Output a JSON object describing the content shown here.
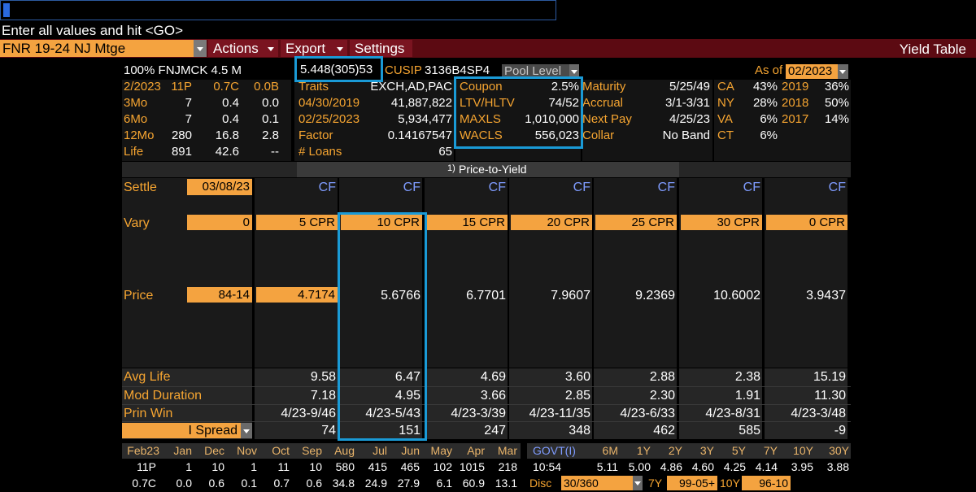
{
  "command_line": {
    "prompt": "Enter all values and hit <GO>"
  },
  "toolbar": {
    "security": "FNR 19-24 NJ Mtge",
    "menus": [
      "Actions",
      "Export",
      "Settings"
    ],
    "title": "Yield Table"
  },
  "header": {
    "description": "100% FNJMCK 4.5 M",
    "quote": "5.448(305)53",
    "cusip_label": "CUSIP",
    "cusip": "3136B4SP4",
    "pool_level": "Pool Level",
    "as_of_label": "As of",
    "as_of": "02/2023"
  },
  "prepay_stats": {
    "rows": [
      [
        "2/2023",
        "11P",
        "0.7C",
        "0.0B"
      ],
      [
        "3Mo",
        "7",
        "0.4",
        "0.0"
      ],
      [
        "6Mo",
        "7",
        "0.4",
        "0.1"
      ],
      [
        "12Mo",
        "280",
        "16.8",
        "2.8"
      ],
      [
        "Life",
        "891",
        "42.6",
        "--"
      ]
    ]
  },
  "pool_info": {
    "rows": [
      [
        "Traits",
        "EXCH,AD,PAC"
      ],
      [
        "04/30/2019",
        "41,887,822"
      ],
      [
        "02/25/2023",
        "5,934,477"
      ],
      [
        "Factor",
        "0.14167547"
      ],
      [
        "# Loans",
        "65"
      ]
    ]
  },
  "loan_info": {
    "rows": [
      [
        "Coupon",
        "2.5%"
      ],
      [
        "LTV/HLTV",
        "74/52"
      ],
      [
        "MAXLS",
        "1,010,000"
      ],
      [
        "WACLS",
        "556,023"
      ]
    ]
  },
  "dates_info": {
    "rows": [
      [
        "Maturity",
        "5/25/49"
      ],
      [
        "Accrual",
        "3/1-3/31"
      ],
      [
        "Next Pay",
        "4/25/23"
      ],
      [
        "Collar",
        "No Band"
      ]
    ]
  },
  "geo": {
    "rows": [
      [
        "CA",
        "43%"
      ],
      [
        "NY",
        "28%"
      ],
      [
        "VA",
        "6%"
      ],
      [
        "CT",
        "6%"
      ]
    ]
  },
  "vintage": {
    "rows": [
      [
        "2019",
        "36%"
      ],
      [
        "2018",
        "50%"
      ],
      [
        "2017",
        "14%"
      ]
    ]
  },
  "section_tab": {
    "number": "1)",
    "title": "Price-to-Yield"
  },
  "yield_table": {
    "settle_label": "Settle",
    "settle": "03/08/23",
    "cf": [
      "CF",
      "CF",
      "CF",
      "CF",
      "CF",
      "CF",
      "CF"
    ],
    "vary_label": "Vary",
    "vary": [
      "0",
      "5 CPR",
      "10 CPR",
      "15 CPR",
      "20 CPR",
      "25 CPR",
      "30 CPR",
      "0 CPR"
    ],
    "price_label": "Price",
    "price": [
      "84-14",
      "4.7174",
      "5.6766",
      "6.7701",
      "7.9607",
      "9.2369",
      "10.6002",
      "3.9437"
    ],
    "rows": [
      {
        "label": "Avg Life",
        "values": [
          "9.58",
          "6.47",
          "4.69",
          "3.60",
          "2.88",
          "2.38",
          "15.19"
        ]
      },
      {
        "label": "Mod Duration",
        "values": [
          "7.18",
          "4.95",
          "3.66",
          "2.85",
          "2.30",
          "1.91",
          "11.30"
        ]
      },
      {
        "label": "Prin Win",
        "values": [
          "4/23-9/46",
          "4/23-5/43",
          "4/23-3/39",
          "4/23-11/35",
          "4/23-6/33",
          "4/23-8/31",
          "4/23-3/48"
        ]
      }
    ],
    "spread_label": "I Spread",
    "spread": [
      "74",
      "151",
      "247",
      "348",
      "462",
      "585",
      "-9"
    ]
  },
  "history": {
    "months": [
      "Feb23",
      "Jan",
      "Dec",
      "Nov",
      "Oct",
      "Sep",
      "Aug",
      "Jul",
      "Jun",
      "May",
      "Apr",
      "Mar"
    ],
    "rows": [
      [
        "11P",
        "1",
        "10",
        "1",
        "11",
        "10",
        "580",
        "415",
        "465",
        "102",
        "1015",
        "218"
      ],
      [
        "0.7C",
        "0.0",
        "0.6",
        "0.1",
        "0.7",
        "0.6",
        "34.8",
        "24.9",
        "27.9",
        "6.1",
        "60.9",
        "13.1"
      ]
    ]
  },
  "govt": {
    "label": "GOVT(I)",
    "tenors": [
      "6M",
      "1Y",
      "2Y",
      "3Y",
      "5Y",
      "7Y",
      "10Y",
      "30Y"
    ],
    "time": "10:54",
    "yields": [
      "5.11",
      "5.00",
      "4.86",
      "4.60",
      "4.25",
      "4.14",
      "3.95",
      "3.88"
    ],
    "disc_label": "Disc",
    "day_count": "30/360",
    "tenor_a": "7Y",
    "price_a": "99-05+",
    "tenor_b": "10Y",
    "price_b": "96-10"
  }
}
